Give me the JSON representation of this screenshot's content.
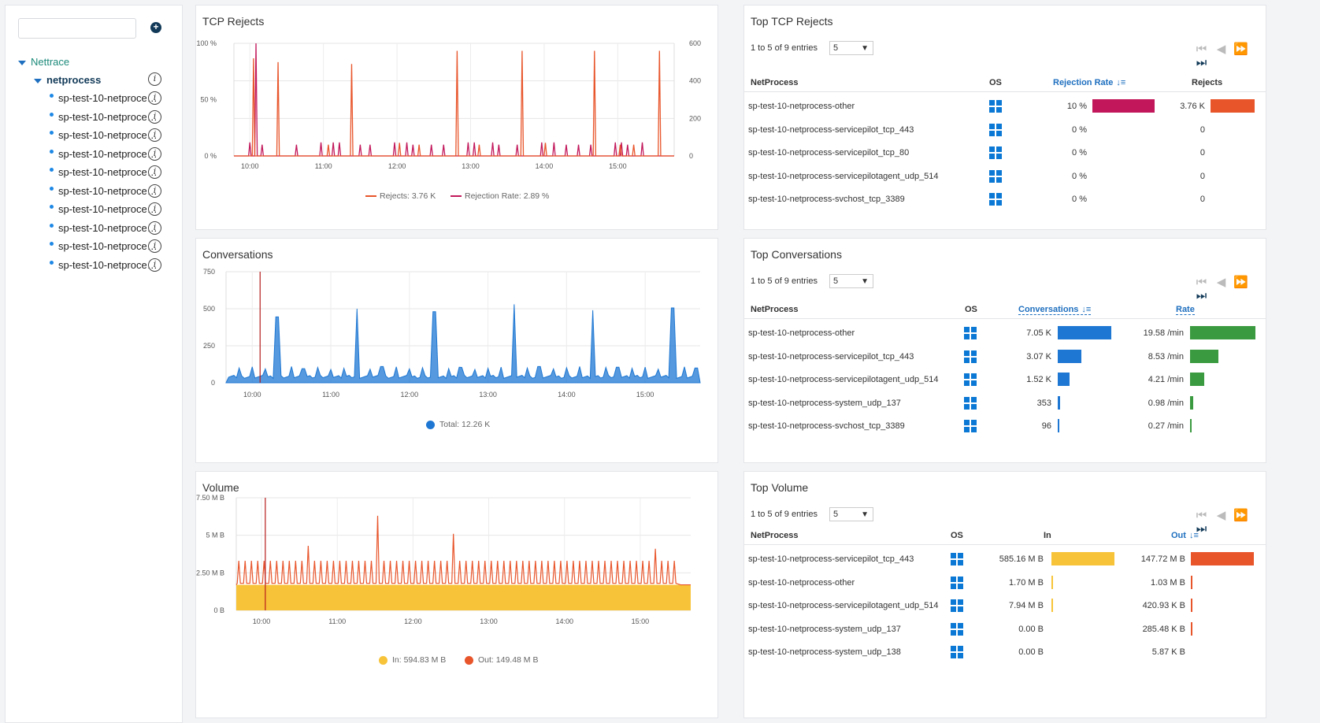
{
  "sidebar": {
    "search_placeholder": "",
    "root": "Nettrace",
    "group": "netprocess",
    "items": [
      "sp-test-10-netproce…",
      "sp-test-10-netproce…",
      "sp-test-10-netproce…",
      "sp-test-10-netproce…",
      "sp-test-10-netproce…",
      "sp-test-10-netproce…",
      "sp-test-10-netproce…",
      "sp-test-10-netproce…",
      "sp-test-10-netproce…",
      "sp-test-10-netproce…"
    ]
  },
  "colors": {
    "rejects": "#e8552b",
    "rejection_rate": "#c2185b",
    "conversations": "#1e77d3",
    "rate_bar": "#3a9a3f",
    "volume_in": "#f7c338",
    "volume_out": "#e8552b"
  },
  "chart_data": [
    {
      "type": "line",
      "title": "TCP Rejects",
      "x_ticks": [
        "10:00",
        "11:00",
        "12:00",
        "13:00",
        "14:00",
        "15:00"
      ],
      "y_left_ticks": [
        "100 %",
        "50 %",
        "0 %"
      ],
      "y_right_ticks": [
        "600",
        "400",
        "200",
        "0"
      ],
      "ylim_left": [
        0,
        100
      ],
      "ylim_right": [
        0,
        600
      ],
      "series": [
        {
          "name": "Rejects",
          "legend": "Rejects: 3.76 K",
          "axis": "right",
          "x": [
            "10:03",
            "10:23",
            "11:04",
            "11:23",
            "12:02",
            "12:18",
            "12:49",
            "13:07",
            "13:42",
            "14:01",
            "14:41",
            "15:02",
            "15:13",
            "15:34"
          ],
          "values": [
            520,
            500,
            60,
            490,
            70,
            60,
            560,
            60,
            560,
            70,
            560,
            60,
            60,
            560
          ]
        },
        {
          "name": "Rejection Rate",
          "legend": "Rejection Rate: 2.89 %",
          "axis": "left",
          "x": [
            "10:00",
            "10:05",
            "10:10",
            "10:38",
            "10:58",
            "11:08",
            "11:13",
            "11:30",
            "11:38",
            "11:58",
            "12:08",
            "12:13",
            "12:28",
            "12:38",
            "12:58",
            "13:03",
            "13:18",
            "13:23",
            "13:38",
            "13:58",
            "14:08",
            "14:18",
            "14:28",
            "14:38",
            "14:58",
            "15:03",
            "15:08",
            "15:20"
          ],
          "values": [
            12,
            100,
            10,
            10,
            12,
            12,
            12,
            10,
            10,
            12,
            12,
            10,
            10,
            10,
            12,
            12,
            12,
            10,
            10,
            12,
            12,
            10,
            10,
            10,
            12,
            12,
            10,
            12
          ]
        }
      ]
    },
    {
      "type": "area",
      "title": "Conversations",
      "x_ticks": [
        "10:00",
        "11:00",
        "12:00",
        "13:00",
        "14:00",
        "15:00"
      ],
      "y_ticks": [
        "750",
        "500",
        "250",
        "0"
      ],
      "ylim": [
        0,
        750
      ],
      "series": [
        {
          "name": "Total",
          "legend": "Total: 12.26 K",
          "baseline": 30,
          "x": [
            "10:19",
            "10:39",
            "11:20",
            "11:39",
            "12:19",
            "12:38",
            "13:20",
            "13:39",
            "14:20",
            "14:39",
            "15:21",
            "15:39"
          ],
          "values": [
            445,
            95,
            500,
            110,
            480,
            105,
            530,
            110,
            490,
            105,
            505,
            100
          ]
        }
      ]
    },
    {
      "type": "area",
      "title": "Volume",
      "x_ticks": [
        "10:00",
        "11:00",
        "12:00",
        "13:00",
        "14:00",
        "15:00"
      ],
      "y_ticks": [
        "7.50 M B",
        "5 M B",
        "2.50 M B",
        "0 B"
      ],
      "ylim": [
        0,
        7.5
      ],
      "series": [
        {
          "name": "In",
          "legend": "In: 594.83 M B",
          "baseline": 1.7
        },
        {
          "name": "Out",
          "legend": "Out: 149.48 M B",
          "spike_baseline": 3.3,
          "spikes": {
            "10:39": 4.3,
            "11:34": 6.3,
            "12:34": 5.1,
            "15:12": 4.1
          }
        }
      ]
    }
  ],
  "panels": {
    "rejects_title": "TCP Rejects",
    "conversations_title": "Conversations",
    "volume_title": "Volume",
    "top_rejects": {
      "title": "Top TCP Rejects",
      "entries": "1 to 5 of 9 entries",
      "page_size": "5",
      "headers": [
        "NetProcess",
        "OS",
        "Rejection Rate",
        "Rejects"
      ],
      "rows": [
        {
          "name": "sp-test-10-netprocess-other",
          "v1": "10 %",
          "f1": 1.0,
          "v2": "3.76 K",
          "f2": 1.0
        },
        {
          "name": "sp-test-10-netprocess-servicepilot_tcp_443",
          "v1": "0 %",
          "f1": 0,
          "v2": "0",
          "f2": 0
        },
        {
          "name": "sp-test-10-netprocess-servicepilot_tcp_80",
          "v1": "0 %",
          "f1": 0,
          "v2": "0",
          "f2": 0
        },
        {
          "name": "sp-test-10-netprocess-servicepilotagent_udp_514",
          "v1": "0 %",
          "f1": 0,
          "v2": "0",
          "f2": 0
        },
        {
          "name": "sp-test-10-netprocess-svchost_tcp_3389",
          "v1": "0 %",
          "f1": 0,
          "v2": "0",
          "f2": 0
        }
      ]
    },
    "top_conversations": {
      "title": "Top Conversations",
      "entries": "1 to 5 of 9 entries",
      "page_size": "5",
      "headers": [
        "NetProcess",
        "OS",
        "Conversations",
        "Rate"
      ],
      "rows": [
        {
          "name": "sp-test-10-netprocess-other",
          "v1": "7.05 K",
          "f1": 1.0,
          "v2": "19.58 /min",
          "f2": 1.0
        },
        {
          "name": "sp-test-10-netprocess-servicepilot_tcp_443",
          "v1": "3.07 K",
          "f1": 0.436,
          "v2": "8.53 /min",
          "f2": 0.436
        },
        {
          "name": "sp-test-10-netprocess-servicepilotagent_udp_514",
          "v1": "1.52 K",
          "f1": 0.215,
          "v2": "4.21 /min",
          "f2": 0.215
        },
        {
          "name": "sp-test-10-netprocess-system_udp_137",
          "v1": "353",
          "f1": 0.05,
          "v2": "0.98 /min",
          "f2": 0.05
        },
        {
          "name": "sp-test-10-netprocess-svchost_tcp_3389",
          "v1": "96",
          "f1": 0.014,
          "v2": "0.27 /min",
          "f2": 0.014
        }
      ]
    },
    "top_volume": {
      "title": "Top Volume",
      "entries": "1 to 5 of 9 entries",
      "page_size": "5",
      "headers": [
        "NetProcess",
        "OS",
        "In",
        "Out"
      ],
      "rows": [
        {
          "name": "sp-test-10-netprocess-servicepilot_tcp_443",
          "v1": "585.16 M B",
          "f1": 1.0,
          "v2": "147.72 M B",
          "f2": 1.0
        },
        {
          "name": "sp-test-10-netprocess-other",
          "v1": "1.70 M B",
          "f1": 0.003,
          "v2": "1.03 M B",
          "f2": 0.007
        },
        {
          "name": "sp-test-10-netprocess-servicepilotagent_udp_514",
          "v1": "7.94 M B",
          "f1": 0.014,
          "v2": "420.93 K B",
          "f2": 0.003
        },
        {
          "name": "sp-test-10-netprocess-system_udp_137",
          "v1": "0.00 B",
          "f1": 0,
          "v2": "285.48 K B",
          "f2": 0.002
        },
        {
          "name": "sp-test-10-netprocess-system_udp_138",
          "v1": "0.00 B",
          "f1": 0,
          "v2": "5.87 K B",
          "f2": 0
        }
      ]
    }
  }
}
